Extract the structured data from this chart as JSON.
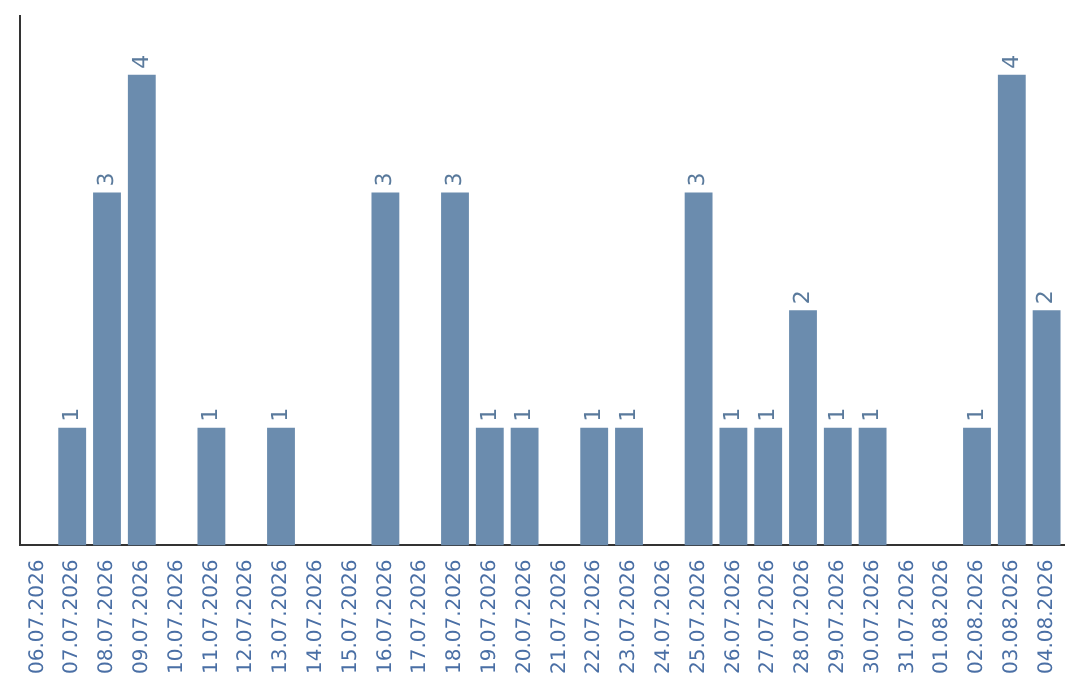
{
  "chart_data": {
    "type": "bar",
    "categories": [
      "06.07.2026",
      "07.07.2026",
      "08.07.2026",
      "09.07.2026",
      "10.07.2026",
      "11.07.2026",
      "12.07.2026",
      "13.07.2026",
      "14.07.2026",
      "15.07.2026",
      "16.07.2026",
      "17.07.2026",
      "18.07.2026",
      "19.07.2026",
      "20.07.2026",
      "21.07.2026",
      "22.07.2026",
      "23.07.2026",
      "24.07.2026",
      "25.07.2026",
      "26.07.2026",
      "27.07.2026",
      "28.07.2026",
      "29.07.2026",
      "30.07.2026",
      "31.07.2026",
      "01.08.2026",
      "02.08.2026",
      "03.08.2026",
      "04.08.2026"
    ],
    "values": [
      0,
      1,
      3,
      4,
      0,
      1,
      0,
      1,
      0,
      0,
      3,
      0,
      3,
      1,
      1,
      0,
      1,
      1,
      0,
      3,
      1,
      1,
      2,
      1,
      1,
      0,
      0,
      1,
      4,
      2
    ],
    "value_labels": [
      null,
      "1",
      "3",
      "4",
      null,
      "1",
      null,
      "1",
      null,
      null,
      "3",
      null,
      "3",
      "1",
      "1",
      null,
      "1",
      "1",
      null,
      "3",
      "1",
      "1",
      "2",
      "1",
      "1",
      null,
      null,
      "1",
      "4",
      "2"
    ],
    "color": "#6b8cae",
    "grid": false,
    "legend": false,
    "tick_labels": "x"
  }
}
